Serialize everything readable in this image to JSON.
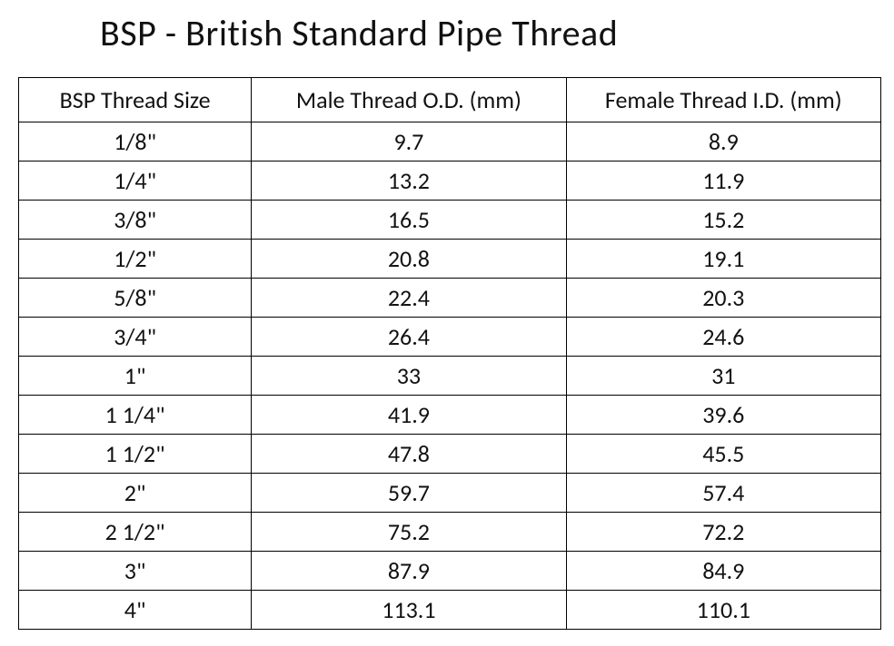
{
  "title": "BSP - British Standard Pipe Thread",
  "table": {
    "type": "table",
    "background_color": "#ffffff",
    "border_color": "#000000",
    "text_color": "#111111",
    "title_fontsize": 40,
    "header_fontsize": 26,
    "cell_fontsize": 26,
    "font_family": "Calibri",
    "column_widths_pct": [
      27,
      36.5,
      36.5
    ],
    "columns": [
      "BSP Thread Size",
      "Male Thread O.D. (mm)",
      "Female Thread I.D. (mm)"
    ],
    "rows": [
      [
        "1/8\"",
        "9.7",
        "8.9"
      ],
      [
        "1/4\"",
        "13.2",
        "11.9"
      ],
      [
        "3/8\"",
        "16.5",
        "15.2"
      ],
      [
        "1/2\"",
        "20.8",
        "19.1"
      ],
      [
        "5/8\"",
        "22.4",
        "20.3"
      ],
      [
        "3/4\"",
        "26.4",
        "24.6"
      ],
      [
        "1\"",
        "33",
        "31"
      ],
      [
        "1 1/4\"",
        "41.9",
        "39.6"
      ],
      [
        "1 1/2\"",
        "47.8",
        "45.5"
      ],
      [
        "2\"",
        "59.7",
        "57.4"
      ],
      [
        "2 1/2\"",
        "75.2",
        "72.2"
      ],
      [
        "3\"",
        "87.9",
        "84.9"
      ],
      [
        "4\"",
        "113.1",
        "110.1"
      ]
    ]
  }
}
